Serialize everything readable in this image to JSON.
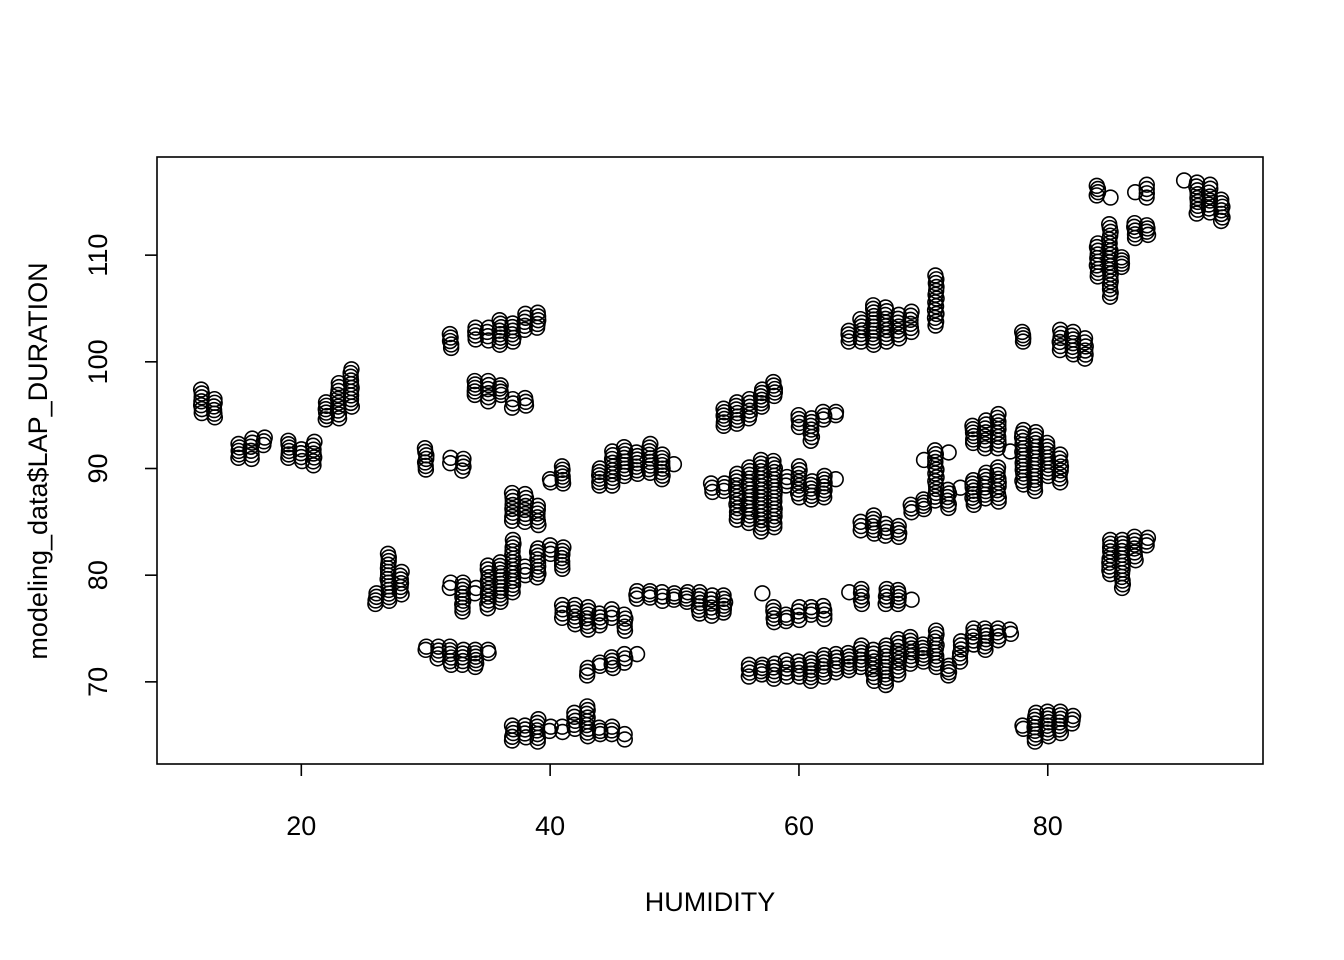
{
  "chart_data": {
    "type": "scatter",
    "title": "",
    "xlabel": "HUMIDITY",
    "ylabel": "modeling_data$LAP_DURATION",
    "xlim": [
      8.4,
      97.3
    ],
    "ylim": [
      62.3,
      119.2
    ],
    "x_ticks": [
      20,
      40,
      60,
      80
    ],
    "y_ticks": [
      70,
      80,
      90,
      100,
      110
    ],
    "x_tick_labels": [
      "20",
      "40",
      "60",
      "80"
    ],
    "y_tick_labels": [
      "70",
      "80",
      "90",
      "100",
      "110"
    ],
    "grid": false,
    "legend": "none",
    "marker": "open-circle",
    "clusters": [
      {
        "x": 12,
        "y": [
          95.2,
          97.4
        ]
      },
      {
        "x": 13,
        "y": [
          94.8,
          96.5
        ]
      },
      {
        "x": 15,
        "y": [
          91.0,
          92.3
        ]
      },
      {
        "x": 16,
        "y": [
          90.9,
          92.8
        ]
      },
      {
        "x": 17,
        "y": [
          92.2,
          92.9
        ]
      },
      {
        "x": 19,
        "y": [
          91.0,
          92.6
        ]
      },
      {
        "x": 20,
        "y": [
          90.7,
          91.8
        ]
      },
      {
        "x": 21,
        "y": [
          90.3,
          92.5
        ]
      },
      {
        "x": 22,
        "y": [
          94.6,
          96.2
        ]
      },
      {
        "x": 23,
        "y": [
          94.7,
          98.0
        ]
      },
      {
        "x": 24,
        "y": [
          95.8,
          99.3
        ]
      },
      {
        "x": 26,
        "y": [
          77.3,
          78.3
        ]
      },
      {
        "x": 27,
        "y": [
          77.6,
          82.0
        ]
      },
      {
        "x": 28,
        "y": [
          78.2,
          80.3
        ]
      },
      {
        "x": 30,
        "y": [
          73.0,
          73.3
        ]
      },
      {
        "x": 30,
        "y": [
          89.9,
          91.9
        ]
      },
      {
        "x": 31,
        "y": [
          72.2,
          73.3
        ]
      },
      {
        "x": 32,
        "y": [
          71.6,
          73.3
        ]
      },
      {
        "x": 32,
        "y": [
          78.8,
          79.3
        ]
      },
      {
        "x": 32,
        "y": [
          101.3,
          102.6
        ]
      },
      {
        "x": 32,
        "y": [
          90.5,
          91.0
        ]
      },
      {
        "x": 33,
        "y": [
          71.6,
          73.0
        ]
      },
      {
        "x": 33,
        "y": [
          76.6,
          79.3
        ]
      },
      {
        "x": 33,
        "y": [
          89.8,
          90.9
        ]
      },
      {
        "x": 34,
        "y": [
          71.4,
          73.0
        ]
      },
      {
        "x": 34,
        "y": [
          78.3,
          78.8
        ]
      },
      {
        "x": 34,
        "y": [
          96.9,
          98.2
        ]
      },
      {
        "x": 34,
        "y": [
          102.1,
          103.2
        ]
      },
      {
        "x": 35,
        "y": [
          72.7,
          73.0
        ]
      },
      {
        "x": 35,
        "y": [
          76.9,
          80.9
        ]
      },
      {
        "x": 35,
        "y": [
          96.3,
          98.2
        ]
      },
      {
        "x": 35,
        "y": [
          102.0,
          103.2
        ]
      },
      {
        "x": 36,
        "y": [
          77.5,
          81.2
        ]
      },
      {
        "x": 36,
        "y": [
          96.9,
          97.8
        ]
      },
      {
        "x": 36,
        "y": [
          101.6,
          103.9
        ]
      },
      {
        "x": 37,
        "y": [
          78.4,
          83.3
        ]
      },
      {
        "x": 37,
        "y": [
          85.1,
          87.7
        ]
      },
      {
        "x": 37,
        "y": [
          95.7,
          96.5
        ]
      },
      {
        "x": 37,
        "y": [
          101.9,
          103.6
        ]
      },
      {
        "x": 37,
        "y": [
          64.5,
          65.9
        ]
      },
      {
        "x": 38,
        "y": [
          80.0,
          80.8
        ]
      },
      {
        "x": 38,
        "y": [
          85.0,
          87.6
        ]
      },
      {
        "x": 38,
        "y": [
          95.9,
          96.6
        ]
      },
      {
        "x": 38,
        "y": [
          103.0,
          104.5
        ]
      },
      {
        "x": 38,
        "y": [
          64.8,
          65.9
        ]
      },
      {
        "x": 39,
        "y": [
          79.8,
          82.5
        ]
      },
      {
        "x": 39,
        "y": [
          84.7,
          86.5
        ]
      },
      {
        "x": 39,
        "y": [
          103.2,
          104.6
        ]
      },
      {
        "x": 39,
        "y": [
          64.4,
          66.5
        ]
      },
      {
        "x": 40,
        "y": [
          82.0,
          82.8
        ]
      },
      {
        "x": 40,
        "y": [
          88.7,
          89.0
        ]
      },
      {
        "x": 40,
        "y": [
          65.4,
          65.8
        ]
      },
      {
        "x": 41,
        "y": [
          80.6,
          82.6
        ]
      },
      {
        "x": 41,
        "y": [
          88.6,
          90.2
        ]
      },
      {
        "x": 41,
        "y": [
          65.3,
          65.8
        ]
      },
      {
        "x": 41,
        "y": [
          76.0,
          77.2
        ]
      },
      {
        "x": 42,
        "y": [
          75.4,
          77.2
        ]
      },
      {
        "x": 42,
        "y": [
          65.6,
          67.1
        ]
      },
      {
        "x": 43,
        "y": [
          70.6,
          71.3
        ]
      },
      {
        "x": 43,
        "y": [
          74.9,
          77.0
        ]
      },
      {
        "x": 43,
        "y": [
          64.9,
          67.7
        ]
      },
      {
        "x": 44,
        "y": [
          75.3,
          76.4
        ]
      },
      {
        "x": 44,
        "y": [
          65.1,
          65.7
        ]
      },
      {
        "x": 44,
        "y": [
          88.4,
          90.0
        ]
      },
      {
        "x": 44,
        "y": [
          71.5,
          71.8
        ]
      },
      {
        "x": 45,
        "y": [
          71.3,
          72.3
        ]
      },
      {
        "x": 45,
        "y": [
          65.1,
          65.8
        ]
      },
      {
        "x": 45,
        "y": [
          76.0,
          76.8
        ]
      },
      {
        "x": 45,
        "y": [
          88.4,
          91.6
        ]
      },
      {
        "x": 46,
        "y": [
          71.8,
          72.6
        ]
      },
      {
        "x": 46,
        "y": [
          74.8,
          76.3
        ]
      },
      {
        "x": 46,
        "y": [
          64.6,
          65.1
        ]
      },
      {
        "x": 46,
        "y": [
          89.3,
          92.0
        ]
      },
      {
        "x": 47,
        "y": [
          72.6,
          72.7
        ]
      },
      {
        "x": 47,
        "y": [
          77.8,
          78.5
        ]
      },
      {
        "x": 47,
        "y": [
          89.5,
          91.5
        ]
      },
      {
        "x": 48,
        "y": [
          77.9,
          78.5
        ]
      },
      {
        "x": 48,
        "y": [
          89.6,
          92.3
        ]
      },
      {
        "x": 49,
        "y": [
          77.6,
          78.4
        ]
      },
      {
        "x": 49,
        "y": [
          89.0,
          91.3
        ]
      },
      {
        "x": 50,
        "y": [
          77.7,
          78.3
        ]
      },
      {
        "x": 50,
        "y": [
          90.4,
          90.4
        ]
      },
      {
        "x": 51,
        "y": [
          77.5,
          78.4
        ]
      },
      {
        "x": 52,
        "y": [
          76.4,
          78.4
        ]
      },
      {
        "x": 53,
        "y": [
          76.2,
          78.1
        ]
      },
      {
        "x": 53,
        "y": [
          87.8,
          88.6
        ]
      },
      {
        "x": 54,
        "y": [
          76.5,
          78.1
        ]
      },
      {
        "x": 54,
        "y": [
          87.9,
          88.6
        ]
      },
      {
        "x": 54,
        "y": [
          94.0,
          95.6
        ]
      },
      {
        "x": 55,
        "y": [
          85.2,
          89.5
        ]
      },
      {
        "x": 55,
        "y": [
          94.2,
          96.2
        ]
      },
      {
        "x": 56,
        "y": [
          70.5,
          71.6
        ]
      },
      {
        "x": 56,
        "y": [
          84.9,
          90.1
        ]
      },
      {
        "x": 56,
        "y": [
          94.7,
          96.5
        ]
      },
      {
        "x": 57,
        "y": [
          70.7,
          71.6
        ]
      },
      {
        "x": 57,
        "y": [
          84.1,
          90.8
        ]
      },
      {
        "x": 57,
        "y": [
          95.8,
          97.4
        ]
      },
      {
        "x": 57,
        "y": [
          78.3,
          78.3
        ]
      },
      {
        "x": 58,
        "y": [
          70.3,
          71.7
        ]
      },
      {
        "x": 58,
        "y": [
          75.6,
          77.0
        ]
      },
      {
        "x": 58,
        "y": [
          84.5,
          90.7
        ]
      },
      {
        "x": 58,
        "y": [
          96.8,
          98.1
        ]
      },
      {
        "x": 59,
        "y": [
          70.5,
          72.0
        ]
      },
      {
        "x": 59,
        "y": [
          75.7,
          76.3
        ]
      },
      {
        "x": 59,
        "y": [
          88.4,
          89.2
        ]
      },
      {
        "x": 60,
        "y": [
          70.5,
          71.9
        ]
      },
      {
        "x": 60,
        "y": [
          75.8,
          77.0
        ]
      },
      {
        "x": 60,
        "y": [
          87.3,
          90.2
        ]
      },
      {
        "x": 60,
        "y": [
          93.9,
          95.0
        ]
      },
      {
        "x": 61,
        "y": [
          70.1,
          72.1
        ]
      },
      {
        "x": 61,
        "y": [
          76.3,
          77.0
        ]
      },
      {
        "x": 61,
        "y": [
          87.1,
          88.8
        ]
      },
      {
        "x": 61,
        "y": [
          92.6,
          94.7
        ]
      },
      {
        "x": 62,
        "y": [
          70.5,
          72.5
        ]
      },
      {
        "x": 62,
        "y": [
          75.9,
          77.1
        ]
      },
      {
        "x": 62,
        "y": [
          87.3,
          89.3
        ]
      },
      {
        "x": 62,
        "y": [
          94.6,
          95.3
        ]
      },
      {
        "x": 63,
        "y": [
          70.9,
          72.6
        ]
      },
      {
        "x": 63,
        "y": [
          89.0,
          89.0
        ]
      },
      {
        "x": 63,
        "y": [
          95.0,
          95.3
        ]
      },
      {
        "x": 64,
        "y": [
          71.1,
          72.7
        ]
      },
      {
        "x": 64,
        "y": [
          78.4,
          78.4
        ]
      },
      {
        "x": 64,
        "y": [
          101.9,
          102.9
        ]
      },
      {
        "x": 65,
        "y": [
          71.4,
          73.4
        ]
      },
      {
        "x": 65,
        "y": [
          77.3,
          78.7
        ]
      },
      {
        "x": 65,
        "y": [
          84.2,
          85.0
        ]
      },
      {
        "x": 65,
        "y": [
          101.9,
          104.0
        ]
      },
      {
        "x": 66,
        "y": [
          70.1,
          73.0
        ]
      },
      {
        "x": 66,
        "y": [
          83.9,
          85.6
        ]
      },
      {
        "x": 66,
        "y": [
          101.6,
          105.3
        ]
      },
      {
        "x": 67,
        "y": [
          69.7,
          73.4
        ]
      },
      {
        "x": 67,
        "y": [
          77.3,
          78.7
        ]
      },
      {
        "x": 67,
        "y": [
          83.7,
          84.8
        ]
      },
      {
        "x": 67,
        "y": [
          101.9,
          105.1
        ]
      },
      {
        "x": 68,
        "y": [
          70.7,
          74.0
        ]
      },
      {
        "x": 68,
        "y": [
          77.3,
          78.6
        ]
      },
      {
        "x": 68,
        "y": [
          83.6,
          84.6
        ]
      },
      {
        "x": 68,
        "y": [
          102.2,
          104.4
        ]
      },
      {
        "x": 69,
        "y": [
          71.7,
          74.2
        ]
      },
      {
        "x": 69,
        "y": [
          77.7,
          77.7
        ]
      },
      {
        "x": 69,
        "y": [
          85.9,
          86.6
        ]
      },
      {
        "x": 69,
        "y": [
          102.8,
          104.7
        ]
      },
      {
        "x": 70,
        "y": [
          71.9,
          73.5
        ]
      },
      {
        "x": 70,
        "y": [
          86.2,
          87.1
        ]
      },
      {
        "x": 70,
        "y": [
          90.8,
          90.8
        ]
      },
      {
        "x": 71,
        "y": [
          71.4,
          74.8
        ]
      },
      {
        "x": 71,
        "y": [
          87.0,
          91.7
        ]
      },
      {
        "x": 71,
        "y": [
          103.4,
          108.1
        ]
      },
      {
        "x": 72,
        "y": [
          70.6,
          71.5
        ]
      },
      {
        "x": 72,
        "y": [
          86.3,
          88.0
        ]
      },
      {
        "x": 72,
        "y": [
          91.5,
          91.5
        ]
      },
      {
        "x": 73,
        "y": [
          71.9,
          73.8
        ]
      },
      {
        "x": 73,
        "y": [
          88.2,
          88.2
        ]
      },
      {
        "x": 74,
        "y": [
          73.5,
          75.0
        ]
      },
      {
        "x": 74,
        "y": [
          86.6,
          88.9
        ]
      },
      {
        "x": 74,
        "y": [
          92.4,
          94.0
        ]
      },
      {
        "x": 75,
        "y": [
          73.0,
          75.0
        ]
      },
      {
        "x": 75,
        "y": [
          87.2,
          89.6
        ]
      },
      {
        "x": 75,
        "y": [
          91.9,
          94.5
        ]
      },
      {
        "x": 76,
        "y": [
          73.9,
          75.0
        ]
      },
      {
        "x": 76,
        "y": [
          86.9,
          90.1
        ]
      },
      {
        "x": 76,
        "y": [
          91.9,
          95.1
        ]
      },
      {
        "x": 77,
        "y": [
          74.5,
          74.9
        ]
      },
      {
        "x": 77,
        "y": [
          91.6,
          91.6
        ]
      },
      {
        "x": 78,
        "y": [
          65.6,
          65.9
        ]
      },
      {
        "x": 78,
        "y": [
          88.5,
          93.6
        ]
      },
      {
        "x": 78,
        "y": [
          101.9,
          102.8
        ]
      },
      {
        "x": 79,
        "y": [
          64.4,
          67.1
        ]
      },
      {
        "x": 79,
        "y": [
          87.9,
          93.4
        ]
      },
      {
        "x": 80,
        "y": [
          64.9,
          67.2
        ]
      },
      {
        "x": 80,
        "y": [
          89.3,
          92.4
        ]
      },
      {
        "x": 81,
        "y": [
          65.2,
          67.2
        ]
      },
      {
        "x": 81,
        "y": [
          88.7,
          91.3
        ]
      },
      {
        "x": 81,
        "y": [
          101.1,
          103.0
        ]
      },
      {
        "x": 82,
        "y": [
          66.1,
          66.8
        ]
      },
      {
        "x": 82,
        "y": [
          100.7,
          102.8
        ]
      },
      {
        "x": 83,
        "y": [
          100.3,
          102.2
        ]
      },
      {
        "x": 84,
        "y": [
          108.0,
          111.1
        ]
      },
      {
        "x": 84,
        "y": [
          115.6,
          116.5
        ]
      },
      {
        "x": 85,
        "y": [
          80.1,
          83.3
        ]
      },
      {
        "x": 85,
        "y": [
          106.1,
          112.9
        ]
      },
      {
        "x": 85,
        "y": [
          115.4,
          115.4
        ]
      },
      {
        "x": 86,
        "y": [
          78.8,
          83.3
        ]
      },
      {
        "x": 86,
        "y": [
          108.9,
          109.8
        ]
      },
      {
        "x": 87,
        "y": [
          81.4,
          83.6
        ]
      },
      {
        "x": 87,
        "y": [
          111.6,
          113.0
        ]
      },
      {
        "x": 87,
        "y": [
          115.9,
          115.9
        ]
      },
      {
        "x": 88,
        "y": [
          82.8,
          83.5
        ]
      },
      {
        "x": 88,
        "y": [
          111.9,
          112.8
        ]
      },
      {
        "x": 88,
        "y": [
          115.4,
          116.6
        ]
      },
      {
        "x": 91,
        "y": [
          117.0,
          117.0
        ]
      },
      {
        "x": 92,
        "y": [
          113.9,
          116.8
        ]
      },
      {
        "x": 93,
        "y": [
          114.0,
          116.6
        ]
      },
      {
        "x": 94,
        "y": [
          113.2,
          115.2
        ]
      }
    ]
  }
}
